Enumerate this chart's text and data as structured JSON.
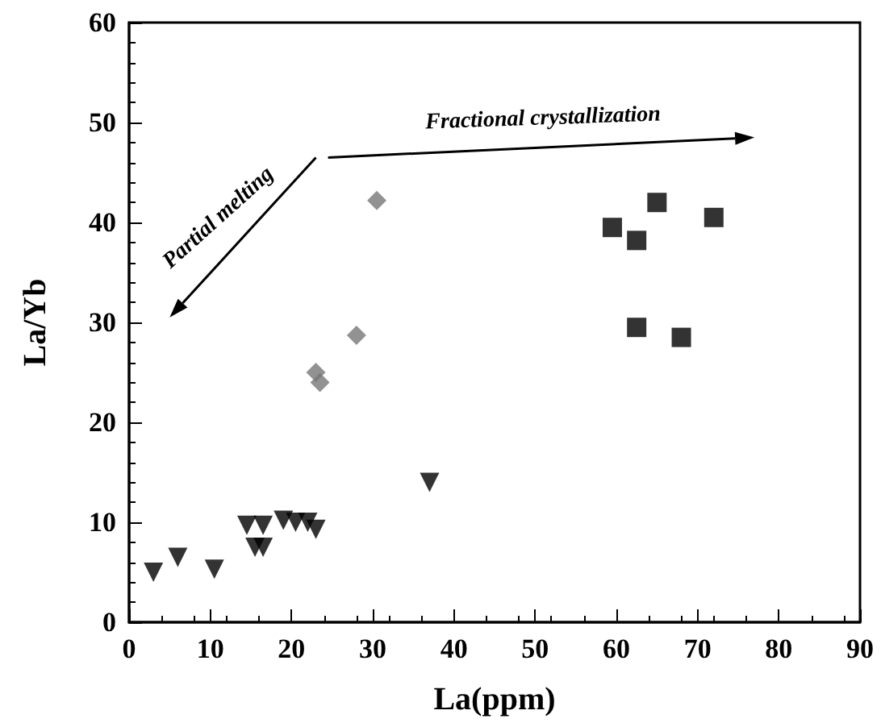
{
  "chart_data": {
    "type": "scatter",
    "xlabel": "La(ppm)",
    "ylabel": "La/Yb",
    "xlim": [
      0,
      90
    ],
    "xticks": [
      0,
      10,
      20,
      30,
      40,
      50,
      60,
      70,
      80,
      90
    ],
    "ylim": [
      0,
      60
    ],
    "yticks": [
      0,
      10,
      20,
      30,
      40,
      50,
      60
    ],
    "grid": false,
    "annotations": [
      "Fractional crystallization",
      "Partial melting"
    ],
    "series": [
      {
        "marker": "triangle",
        "color": "#000000",
        "x": [
          3,
          6,
          10.5,
          14.5,
          16.5,
          15.5,
          16.5,
          19,
          20.5,
          22,
          23,
          37
        ],
        "values": [
          5,
          6.5,
          5.3,
          9.7,
          9.7,
          7.5,
          7.5,
          10.2,
          10,
          10,
          9.3,
          14
        ]
      },
      {
        "marker": "diamond",
        "color": "#777777",
        "x": [
          23,
          23.5,
          28,
          30.5
        ],
        "values": [
          25,
          24,
          28.7,
          42.2
        ]
      },
      {
        "marker": "square",
        "color": "#000000",
        "x": [
          59.5,
          62.5,
          62.5,
          65,
          68,
          72
        ],
        "values": [
          39.5,
          38.2,
          29.5,
          42,
          28.5,
          40.5
        ]
      }
    ]
  }
}
